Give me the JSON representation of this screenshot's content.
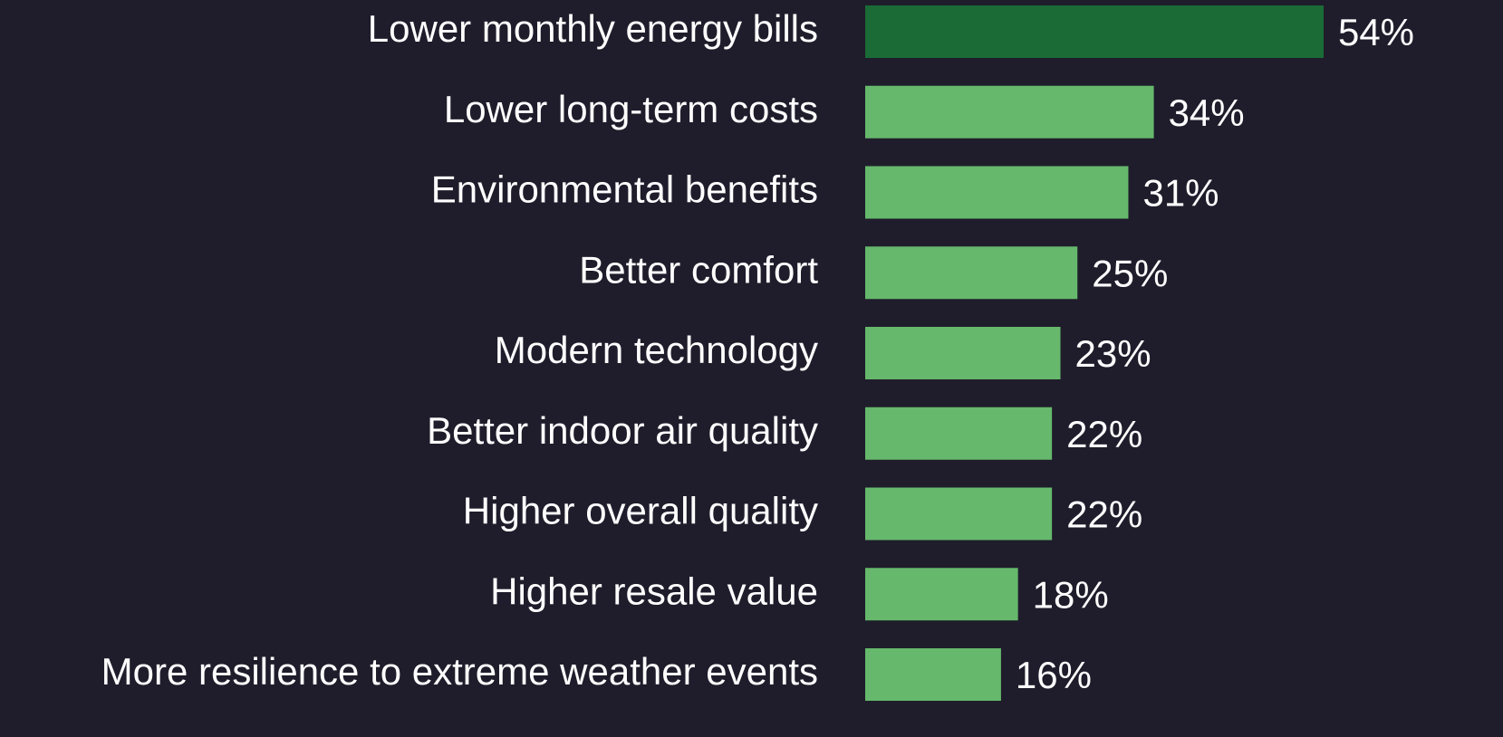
{
  "chart_data": {
    "type": "barh",
    "categories": [
      "Lower monthly energy bills",
      "Lower long-term costs",
      "Environmental benefits",
      "Better comfort",
      "Modern technology",
      "Better indoor air quality",
      "Higher overall quality",
      "Higher resale value",
      "More resilience to extreme weather events"
    ],
    "values": [
      54,
      34,
      31,
      25,
      23,
      22,
      22,
      18,
      16
    ],
    "value_labels": [
      "54%",
      "34%",
      "31%",
      "25%",
      "23%",
      "22%",
      "22%",
      "18%",
      "16%"
    ],
    "colors": [
      "#1a6b36",
      "#66b86c",
      "#66b86c",
      "#66b86c",
      "#66b86c",
      "#66b86c",
      "#66b86c",
      "#66b86c",
      "#66b86c"
    ]
  }
}
